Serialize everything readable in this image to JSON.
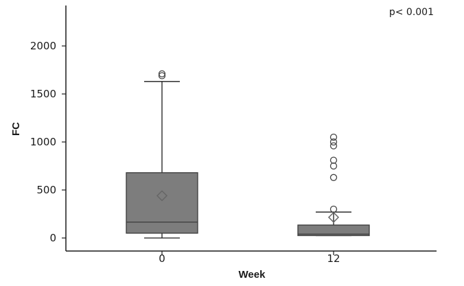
{
  "chart_data": {
    "type": "boxplot",
    "xlabel": "Week",
    "ylabel": "FC",
    "categories": [
      "0",
      "12"
    ],
    "ylim": [
      -60,
      2400
    ],
    "yticks": [
      0,
      500,
      1000,
      1500,
      2000
    ],
    "ytick_labels": [
      "0",
      "500",
      "1000",
      "1500",
      "2000"
    ],
    "annotation": "p< 0.001",
    "grid": false,
    "legend": "none",
    "colors": {
      "box_fill": "#7d7d7d",
      "box_stroke": "#3a3a3a",
      "whisker": "#1a1a1a",
      "outlier": "#444444",
      "mean_marker": "#666666",
      "axis": "#1a1a1a"
    },
    "boxes": [
      {
        "category": "0",
        "whisker_low": 0,
        "q1": 50,
        "median": 165,
        "q3": 680,
        "whisker_high": 1630,
        "mean": 440,
        "outliers": [
          1690,
          1710
        ]
      },
      {
        "category": "12",
        "whisker_low": 25,
        "q1": 25,
        "median": 40,
        "q3": 135,
        "whisker_high": 270,
        "mean": 215,
        "outliers": [
          300,
          630,
          750,
          810,
          960,
          1000,
          1050
        ]
      }
    ]
  }
}
